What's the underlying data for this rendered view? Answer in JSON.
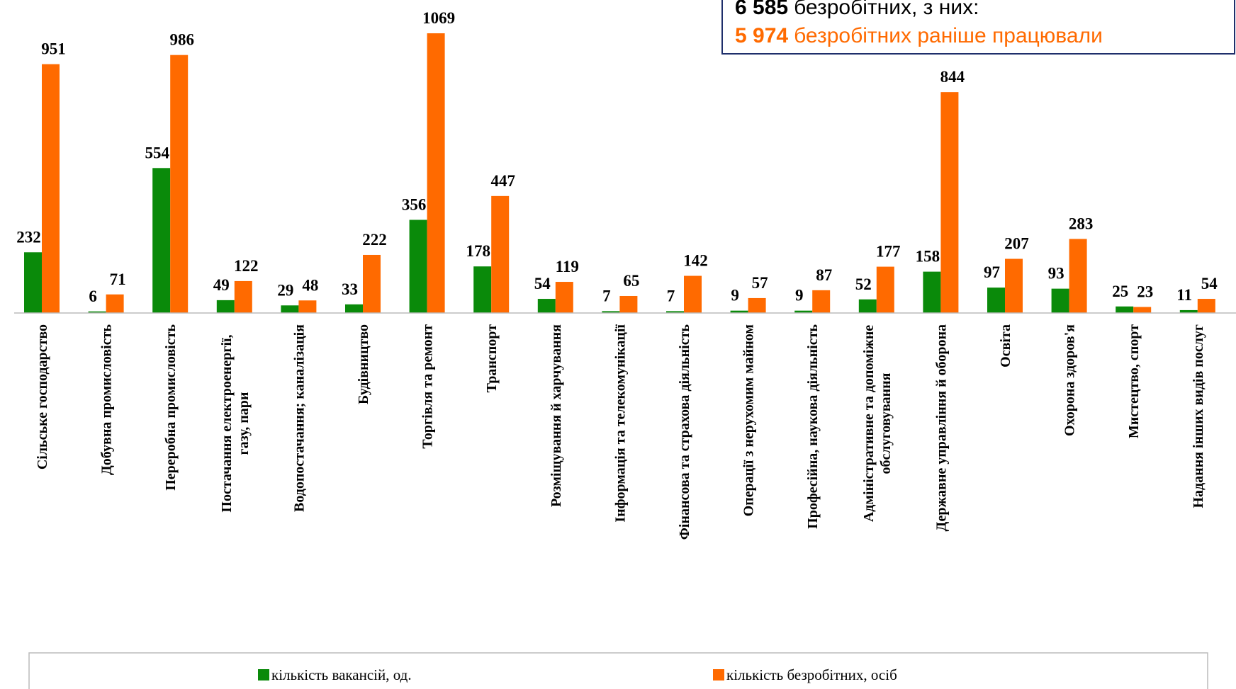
{
  "chart_data": {
    "type": "bar",
    "categories": [
      [
        "Сільське господарство"
      ],
      [
        "Добувна промисловість"
      ],
      [
        "Переробна промисловість"
      ],
      [
        "Постачання електроенергії,",
        "газу, пари"
      ],
      [
        "Водопостачання; каналізація"
      ],
      [
        "Будівництво"
      ],
      [
        "Торгівля та ремонт"
      ],
      [
        "Транспорт"
      ],
      [
        "Розміщування й харчування"
      ],
      [
        "Інформація та телекомунікації"
      ],
      [
        "Фінансова та страхова діяльність"
      ],
      [
        "Операції з нерухомим майном"
      ],
      [
        "Професійна, наукова діяльність"
      ],
      [
        "Адміністративне та допоміжне",
        "обслуговування"
      ],
      [
        "Державне управління й оборона"
      ],
      [
        "Освіта"
      ],
      [
        "Охорона здоров'я"
      ],
      [
        "Мистецтво, спорт"
      ],
      [
        "Надання інших видів послуг"
      ]
    ],
    "series": [
      {
        "name": "кількість вакансій, од.",
        "color": "#0a8a0a",
        "values": [
          232,
          6,
          554,
          49,
          29,
          33,
          356,
          178,
          54,
          7,
          7,
          9,
          9,
          52,
          158,
          97,
          93,
          25,
          11
        ]
      },
      {
        "name": "кількість безробітних, осіб",
        "color": "#ff6a00",
        "values": [
          951,
          71,
          986,
          122,
          48,
          222,
          1069,
          447,
          119,
          65,
          142,
          57,
          87,
          177,
          844,
          207,
          283,
          23,
          54
        ]
      }
    ],
    "annotation": [
      {
        "number": "6 585",
        "text": "безробітних, з них:"
      },
      {
        "number": "5 974",
        "text": "безробітних раніше працювали"
      }
    ]
  }
}
